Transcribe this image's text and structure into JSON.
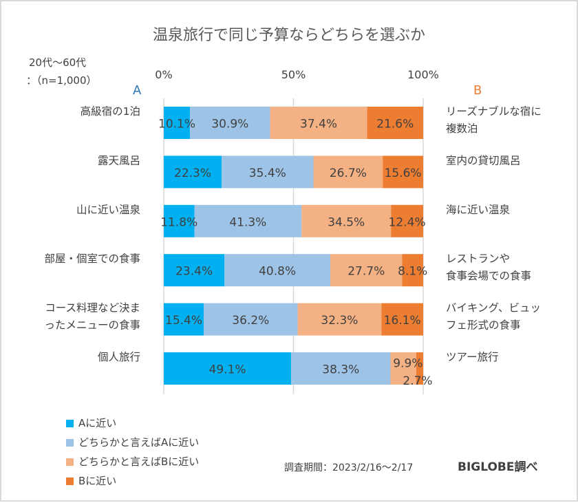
{
  "chart_data": {
    "type": "bar",
    "orientation": "horizontal",
    "stacked": "percent",
    "title": "温泉旅行で同じ予算ならどちらを選ぶか",
    "sample_note": [
      "20代～60代",
      "：（n=1,000）"
    ],
    "side_a_label": "A",
    "side_b_label": "B",
    "x_ticks": [
      "0%",
      "50%",
      "100%"
    ],
    "xlim": [
      0,
      100
    ],
    "grid": true,
    "categories_a": [
      [
        "高級宿の1泊"
      ],
      [
        "露天風呂"
      ],
      [
        "山に近い温泉"
      ],
      [
        "部屋・個室での食事"
      ],
      [
        "コース料理など決ま",
        "ったメニューの食事"
      ],
      [
        "個人旅行"
      ]
    ],
    "categories_b": [
      [
        "リーズナブルな宿に",
        "複数泊"
      ],
      [
        "室内の貸切風呂"
      ],
      [
        "海に近い温泉"
      ],
      [
        "レストランや",
        "食事会場での食事"
      ],
      [
        "バイキング、ビュッ",
        "フェ形式の食事"
      ],
      [
        "ツアー旅行"
      ]
    ],
    "series": [
      {
        "name": "Aに近い",
        "color": "#00B0F0",
        "values": [
          10.1,
          22.3,
          11.8,
          23.4,
          15.4,
          49.1
        ]
      },
      {
        "name": "どちらかと言えばAに近い",
        "color": "#9DC3E6",
        "values": [
          30.9,
          35.4,
          41.3,
          40.8,
          36.2,
          38.3
        ]
      },
      {
        "name": "どちらかと言えばBに近い",
        "color": "#F4B183",
        "values": [
          37.4,
          26.7,
          34.5,
          27.7,
          32.3,
          9.9
        ]
      },
      {
        "name": "Bに近い",
        "color": "#ED7D31",
        "values": [
          21.6,
          15.6,
          12.4,
          8.1,
          16.1,
          2.7
        ]
      }
    ],
    "legend_position": "bottom-left"
  },
  "footer": {
    "period": "調査期間：2023/2/16～2/17",
    "credit": "BIGLOBE調べ"
  }
}
